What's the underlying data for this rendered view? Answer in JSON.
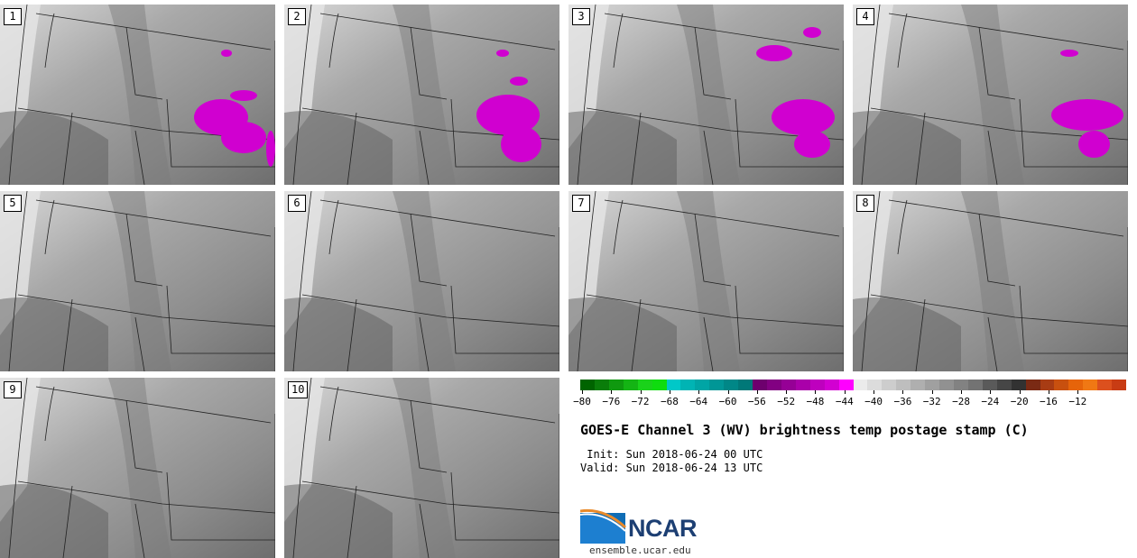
{
  "panels": [
    {
      "label": "1"
    },
    {
      "label": "2"
    },
    {
      "label": "3"
    },
    {
      "label": "4"
    },
    {
      "label": "5"
    },
    {
      "label": "6"
    },
    {
      "label": "7"
    },
    {
      "label": "8"
    },
    {
      "label": "9"
    },
    {
      "label": "10"
    }
  ],
  "colorbar": {
    "colors": [
      "#006400",
      "#0a7d0a",
      "#0f990f",
      "#14b414",
      "#1ad21a",
      "#0fdc0f",
      "#00c8c8",
      "#00b4b4",
      "#00a5a5",
      "#009696",
      "#008787",
      "#007878",
      "#6e006e",
      "#820082",
      "#960096",
      "#aa00aa",
      "#be00be",
      "#d200d2",
      "#ff00ff",
      "#ebebeb",
      "#dcdcdc",
      "#cdcdcd",
      "#bebebe",
      "#afafaf",
      "#a0a0a0",
      "#919191",
      "#828282",
      "#737373",
      "#5a5a5a",
      "#464646",
      "#323232",
      "#7a2a14",
      "#a83c14",
      "#c8500f",
      "#e6640a",
      "#f07814",
      "#dc501e",
      "#c83c14"
    ],
    "ticks": [
      "−80",
      "−76",
      "−72",
      "−68",
      "−64",
      "−60",
      "−56",
      "−52",
      "−48",
      "−44",
      "−40",
      "−36",
      "−32",
      "−28",
      "−24",
      "−20",
      "−16",
      "−12"
    ]
  },
  "title": "GOES-E Channel 3 (WV) brightness temp postage stamp (C)",
  "init_line": " Init: Sun 2018-06-24 00 UTC",
  "valid_line": "Valid: Sun 2018-06-24 13 UTC",
  "logo": {
    "name": "NCAR",
    "url": "ensemble.ucar.edu"
  }
}
